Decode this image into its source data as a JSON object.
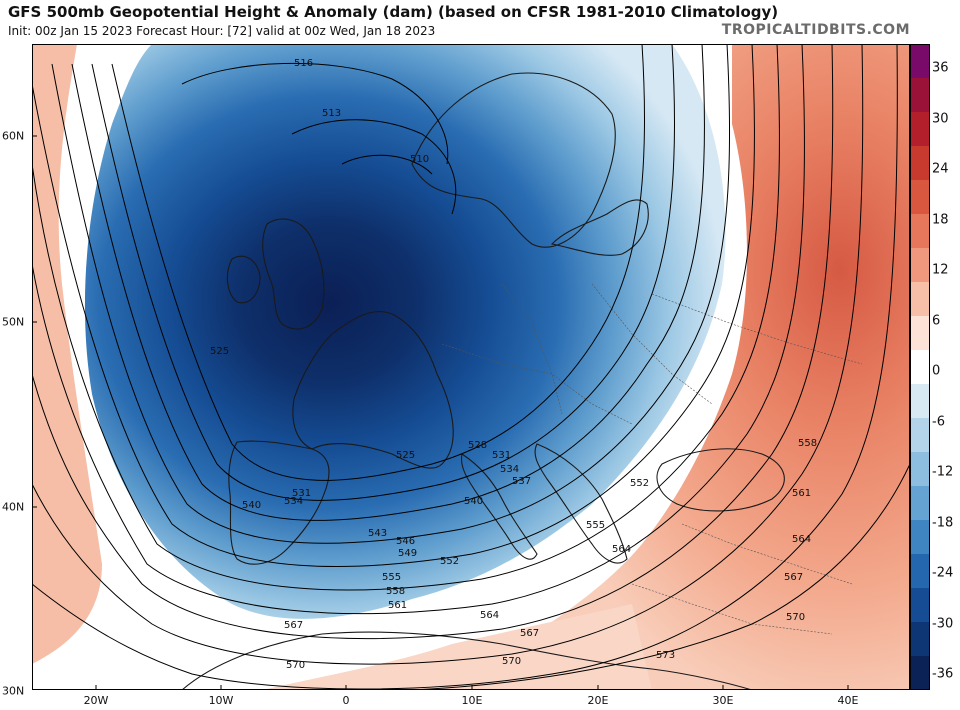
{
  "header": {
    "title": "GFS 500mb Geopotential Height & Anomaly (dam) (based on CFSR 1981-2010 Climatology)",
    "subtitle": "Init: 00z Jan 15 2023   Forecast Hour: [72]   valid at 00z Wed, Jan 18 2023",
    "brand": "TROPICALTIDBITS.COM"
  },
  "axes": {
    "lat_labels": [
      "60N",
      "50N",
      "40N",
      "30N"
    ],
    "lon_labels": [
      "20W",
      "10W",
      "0",
      "10E",
      "20E",
      "30E",
      "40E"
    ]
  },
  "colorbar": {
    "labels": [
      "36",
      "30",
      "24",
      "18",
      "12",
      "6",
      "0",
      "-6",
      "-12",
      "-18",
      "-24",
      "-30",
      "-36"
    ],
    "colors": [
      "#7a0a6a",
      "#9a1238",
      "#b3202b",
      "#c8392e",
      "#d9573f",
      "#e6775a",
      "#f0987d",
      "#f8bfa8",
      "#fde3d7",
      "#ffffff",
      "#d9e9f4",
      "#b4d4ea",
      "#8dbedf",
      "#64a3d2",
      "#3f85c1",
      "#2467ae",
      "#154c93",
      "#0e3574",
      "#0b2256"
    ]
  },
  "contour_labels": [
    "516",
    "513",
    "510",
    "525",
    "528",
    "531",
    "534",
    "537",
    "540",
    "543",
    "546",
    "549",
    "552",
    "555",
    "558",
    "561",
    "564",
    "567",
    "570",
    "573"
  ],
  "colors": {
    "land_outline": "#1a1a1a",
    "border": "#555555",
    "contour": "#000000"
  }
}
